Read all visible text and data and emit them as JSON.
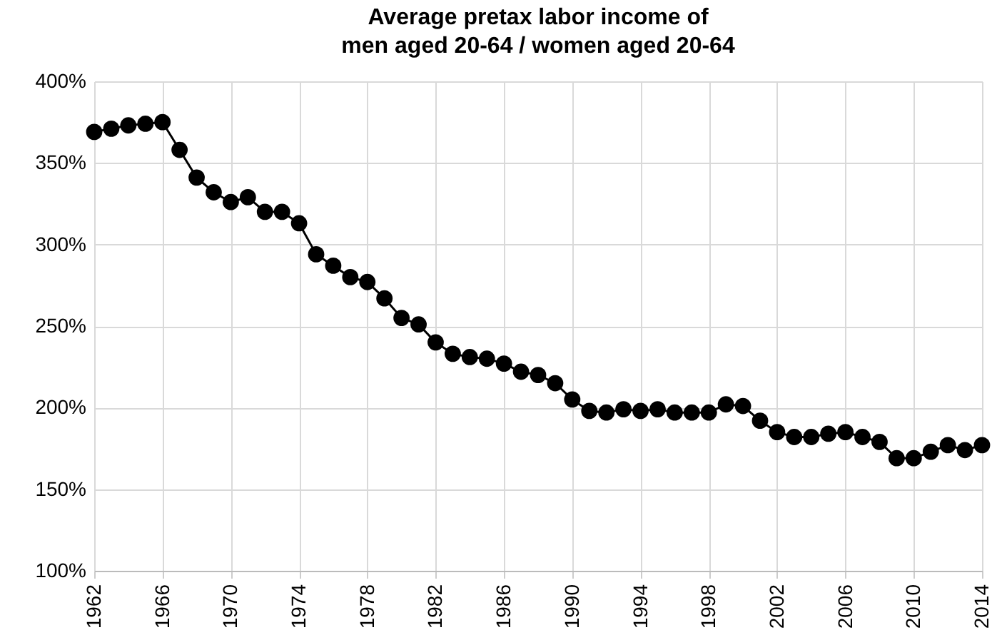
{
  "chart_data": {
    "type": "line",
    "title": "Average pretax labor income of\nmen aged 20-64 / women aged 20-64",
    "x": [
      1962,
      1963,
      1964,
      1965,
      1966,
      1967,
      1968,
      1969,
      1970,
      1971,
      1972,
      1973,
      1974,
      1975,
      1976,
      1977,
      1978,
      1979,
      1980,
      1981,
      1982,
      1983,
      1984,
      1985,
      1986,
      1987,
      1988,
      1989,
      1990,
      1991,
      1992,
      1993,
      1994,
      1995,
      1996,
      1997,
      1998,
      1999,
      2000,
      2001,
      2002,
      2003,
      2004,
      2005,
      2006,
      2007,
      2008,
      2009,
      2010,
      2011,
      2012,
      2013,
      2014
    ],
    "series": [
      {
        "color": "#000000",
        "values": [
          369,
          371,
          373,
          374,
          375,
          358,
          341,
          332,
          326,
          329,
          320,
          320,
          313,
          294,
          287,
          280,
          277,
          267,
          255,
          251,
          240,
          233,
          231,
          230,
          227,
          222,
          220,
          215,
          205,
          198,
          197,
          199,
          198,
          199,
          197,
          197,
          197,
          202,
          201,
          192,
          185,
          182,
          182,
          184,
          185,
          182,
          179,
          169,
          169,
          173,
          177,
          174,
          177
        ]
      }
    ],
    "xlim": [
      1962,
      2014
    ],
    "xticks": [
      1962,
      1966,
      1970,
      1974,
      1978,
      1982,
      1986,
      1990,
      1994,
      1998,
      2002,
      2006,
      2010,
      2014
    ],
    "ylim": [
      100,
      400
    ],
    "yticks": [
      {
        "value": 100,
        "label": "100%"
      },
      {
        "value": 150,
        "label": "150%"
      },
      {
        "value": 200,
        "label": "200%"
      },
      {
        "value": 250,
        "label": "250%"
      },
      {
        "value": 300,
        "label": "300%"
      },
      {
        "value": 350,
        "label": "350%"
      },
      {
        "value": 400,
        "label": "400%"
      }
    ],
    "grid": true,
    "marker": "circle",
    "line_style": "solid"
  }
}
